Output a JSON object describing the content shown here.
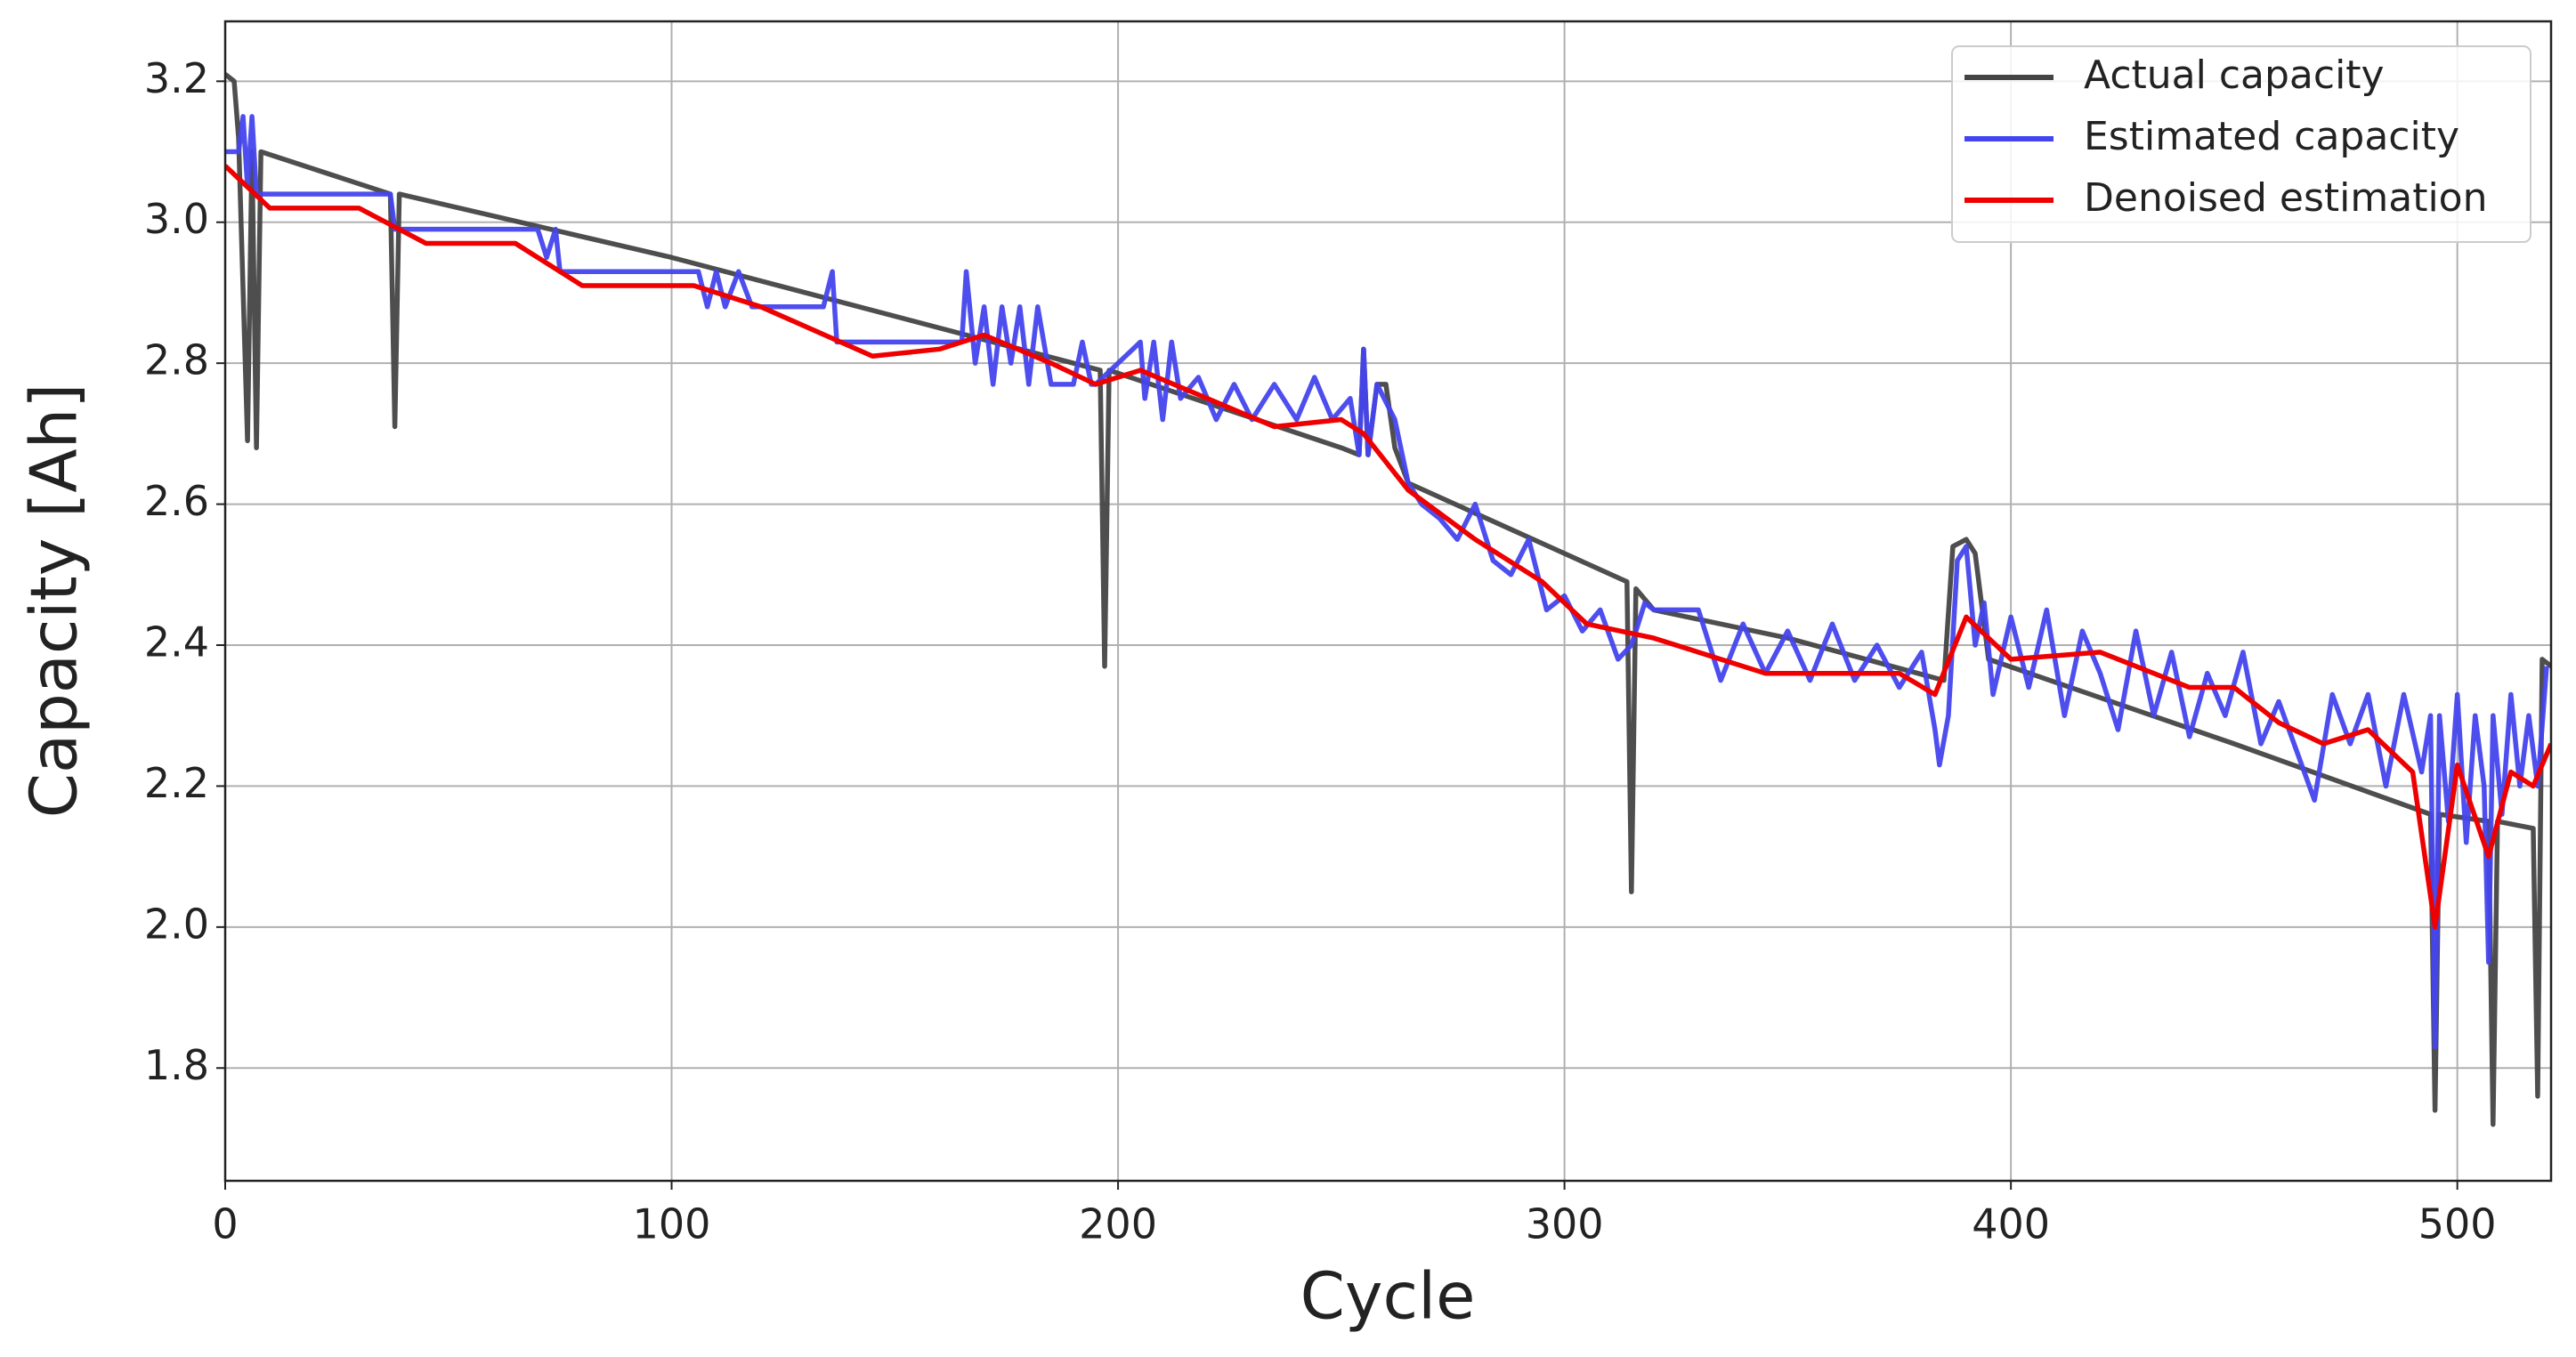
{
  "chart_data": {
    "type": "line",
    "x_label": "Cycle",
    "y_label": "Capacity [Ah]",
    "xlim": [
      0,
      521
    ],
    "ylim": [
      1.64,
      3.285
    ],
    "xticks": [
      0,
      100,
      200,
      300,
      400,
      500
    ],
    "yticks": [
      {
        "value": 1.8,
        "label": "1.8"
      },
      {
        "value": 2.0,
        "label": "2.0"
      },
      {
        "value": 2.2,
        "label": "2.2"
      },
      {
        "value": 2.4,
        "label": "2.4"
      },
      {
        "value": 2.6,
        "label": "2.6"
      },
      {
        "value": 2.8,
        "label": "2.8"
      },
      {
        "value": 3.0,
        "label": "3.0"
      },
      {
        "value": 3.2,
        "label": "3.2"
      }
    ],
    "grid": true,
    "legend": "upper right",
    "series": [
      {
        "name": "Actual capacity",
        "color": "#444444",
        "x": [
          0,
          2,
          3,
          5,
          6,
          7,
          8,
          37,
          38,
          39,
          100,
          196,
          197,
          198,
          250,
          254,
          255,
          256,
          258,
          260,
          262,
          265,
          300,
          314,
          315,
          316,
          320,
          350,
          385,
          387,
          390,
          392,
          395,
          450,
          494,
          495,
          496,
          507,
          508,
          509,
          517,
          518,
          519,
          521
        ],
        "values": [
          3.21,
          3.2,
          3.12,
          2.69,
          3.1,
          2.68,
          3.1,
          3.04,
          2.71,
          3.04,
          2.95,
          2.79,
          2.37,
          2.79,
          2.68,
          2.67,
          2.82,
          2.67,
          2.77,
          2.77,
          2.68,
          2.63,
          2.53,
          2.49,
          2.05,
          2.48,
          2.45,
          2.41,
          2.35,
          2.54,
          2.55,
          2.53,
          2.38,
          2.26,
          2.16,
          1.74,
          2.16,
          2.15,
          1.72,
          2.15,
          2.14,
          1.76,
          2.38,
          2.37
        ]
      },
      {
        "name": "Estimated capacity",
        "color": "#4444ee",
        "x": [
          0,
          3,
          4,
          5,
          6,
          7,
          8,
          37,
          38,
          70,
          72,
          74,
          75,
          106,
          108,
          110,
          112,
          115,
          118,
          120,
          134,
          136,
          137,
          165,
          166,
          168,
          170,
          172,
          174,
          176,
          178,
          180,
          182,
          185,
          190,
          192,
          194,
          195,
          205,
          206,
          208,
          210,
          212,
          214,
          218,
          222,
          226,
          230,
          235,
          240,
          244,
          248,
          252,
          254,
          255,
          256,
          258,
          262,
          265,
          268,
          272,
          276,
          280,
          284,
          288,
          292,
          296,
          300,
          304,
          308,
          312,
          315,
          318,
          320,
          330,
          335,
          340,
          345,
          350,
          355,
          360,
          365,
          370,
          375,
          380,
          383,
          384,
          386,
          388,
          390,
          392,
          394,
          396,
          400,
          404,
          408,
          412,
          416,
          420,
          424,
          428,
          432,
          436,
          440,
          444,
          448,
          452,
          456,
          460,
          464,
          468,
          472,
          476,
          480,
          484,
          488,
          492,
          494,
          495,
          496,
          498,
          500,
          502,
          504,
          506,
          507,
          508,
          510,
          512,
          514,
          516,
          518,
          520
        ],
        "values": [
          3.1,
          3.1,
          3.15,
          3.05,
          3.15,
          3.04,
          3.04,
          3.04,
          2.99,
          2.99,
          2.95,
          2.99,
          2.93,
          2.93,
          2.88,
          2.93,
          2.88,
          2.93,
          2.88,
          2.88,
          2.88,
          2.93,
          2.83,
          2.83,
          2.93,
          2.8,
          2.88,
          2.77,
          2.88,
          2.8,
          2.88,
          2.77,
          2.88,
          2.77,
          2.77,
          2.83,
          2.77,
          2.77,
          2.83,
          2.75,
          2.83,
          2.72,
          2.83,
          2.75,
          2.78,
          2.72,
          2.77,
          2.72,
          2.77,
          2.72,
          2.78,
          2.72,
          2.75,
          2.67,
          2.82,
          2.67,
          2.77,
          2.72,
          2.63,
          2.6,
          2.58,
          2.55,
          2.6,
          2.52,
          2.5,
          2.55,
          2.45,
          2.47,
          2.42,
          2.45,
          2.38,
          2.4,
          2.46,
          2.45,
          2.45,
          2.35,
          2.43,
          2.36,
          2.42,
          2.35,
          2.43,
          2.35,
          2.4,
          2.34,
          2.39,
          2.28,
          2.23,
          2.3,
          2.52,
          2.54,
          2.4,
          2.46,
          2.33,
          2.44,
          2.34,
          2.45,
          2.3,
          2.42,
          2.36,
          2.28,
          2.42,
          2.3,
          2.39,
          2.27,
          2.36,
          2.3,
          2.39,
          2.26,
          2.32,
          2.25,
          2.18,
          2.33,
          2.26,
          2.33,
          2.2,
          2.33,
          2.22,
          2.3,
          1.83,
          2.3,
          2.15,
          2.33,
          2.12,
          2.3,
          2.2,
          1.95,
          2.3,
          2.16,
          2.33,
          2.2,
          2.3,
          2.2,
          2.37
        ]
      },
      {
        "name": "Denoised estimation",
        "color": "#ee0000",
        "x": [
          0,
          10,
          30,
          45,
          65,
          80,
          105,
          120,
          145,
          160,
          170,
          185,
          195,
          205,
          220,
          235,
          250,
          255,
          265,
          280,
          295,
          305,
          320,
          335,
          345,
          360,
          375,
          383,
          390,
          400,
          420,
          440,
          450,
          460,
          470,
          480,
          490,
          495,
          500,
          507,
          512,
          517,
          521
        ],
        "values": [
          3.08,
          3.02,
          3.02,
          2.97,
          2.97,
          2.91,
          2.91,
          2.88,
          2.81,
          2.82,
          2.84,
          2.8,
          2.77,
          2.79,
          2.75,
          2.71,
          2.72,
          2.7,
          2.62,
          2.55,
          2.49,
          2.43,
          2.41,
          2.38,
          2.36,
          2.36,
          2.36,
          2.33,
          2.44,
          2.38,
          2.39,
          2.34,
          2.34,
          2.29,
          2.26,
          2.28,
          2.22,
          2.0,
          2.23,
          2.1,
          2.22,
          2.2,
          2.26
        ]
      }
    ]
  }
}
